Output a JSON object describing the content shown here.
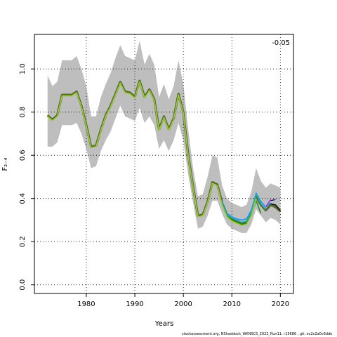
{
  "chart_data": {
    "type": "line",
    "title": "",
    "xlabel": "Years",
    "ylabel": "F₂₋₄",
    "xlim": [
      1969.3,
      2022.7
    ],
    "ylim": [
      -0.04,
      1.16
    ],
    "x_ticks": [
      1980,
      1990,
      2000,
      2010,
      2020
    ],
    "y_ticks": [
      0.0,
      0.2,
      0.4,
      0.6,
      0.8,
      1.0
    ],
    "grid": "dotted",
    "annotation": "-0.05",
    "confidence_band": {
      "x": [
        1972,
        1973,
        1974,
        1975,
        1976,
        1977,
        1978,
        1979,
        1980,
        1981,
        1982,
        1983,
        1984,
        1985,
        1986,
        1987,
        1988,
        1989,
        1990,
        1991,
        1992,
        1993,
        1994,
        1995,
        1996,
        1997,
        1998,
        1999,
        2000,
        2001,
        2002,
        2003,
        2004,
        2005,
        2006,
        2007,
        2008,
        2009,
        2010,
        2011,
        2012,
        2013,
        2014,
        2015,
        2016,
        2017,
        2018,
        2019,
        2020
      ],
      "upper": [
        0.97,
        0.92,
        0.94,
        1.04,
        1.04,
        1.04,
        1.06,
        1.0,
        0.92,
        0.78,
        0.78,
        0.87,
        0.93,
        0.98,
        1.05,
        1.11,
        1.06,
        1.05,
        1.04,
        1.13,
        1.02,
        1.07,
        1.02,
        0.87,
        0.93,
        0.86,
        0.92,
        1.04,
        0.93,
        0.72,
        0.54,
        0.41,
        0.42,
        0.5,
        0.6,
        0.59,
        0.46,
        0.4,
        0.38,
        0.37,
        0.36,
        0.37,
        0.43,
        0.54,
        0.48,
        0.45,
        0.47,
        0.46,
        0.45
      ],
      "lower": [
        0.64,
        0.64,
        0.66,
        0.74,
        0.74,
        0.74,
        0.75,
        0.7,
        0.63,
        0.54,
        0.55,
        0.62,
        0.67,
        0.71,
        0.77,
        0.83,
        0.78,
        0.77,
        0.76,
        0.82,
        0.75,
        0.78,
        0.74,
        0.63,
        0.67,
        0.62,
        0.67,
        0.75,
        0.67,
        0.51,
        0.38,
        0.26,
        0.27,
        0.32,
        0.39,
        0.39,
        0.33,
        0.28,
        0.26,
        0.25,
        0.24,
        0.24,
        0.28,
        0.35,
        0.32,
        0.29,
        0.31,
        0.3,
        0.28
      ]
    },
    "series": [
      {
        "color": "#556b2f",
        "x": [
          1972,
          1973,
          1974,
          1975,
          1976,
          1977,
          1978,
          1979,
          1980,
          1981,
          1982,
          1983,
          1984,
          1985,
          1986,
          1987,
          1988,
          1989,
          1990,
          1991,
          1992,
          1993,
          1994,
          1995,
          1996,
          1997,
          1998,
          1999,
          2000,
          2001,
          2002,
          2003,
          2004,
          2005,
          2006,
          2007,
          2008,
          2009,
          2010,
          2011,
          2012,
          2013,
          2014,
          2015,
          2016,
          2017,
          2018,
          2019,
          2020
        ],
        "values": [
          0.785,
          0.765,
          0.785,
          0.88,
          0.88,
          0.88,
          0.895,
          0.83,
          0.74,
          0.64,
          0.645,
          0.72,
          0.785,
          0.83,
          0.885,
          0.94,
          0.895,
          0.89,
          0.87,
          0.945,
          0.87,
          0.905,
          0.86,
          0.72,
          0.78,
          0.72,
          0.77,
          0.885,
          0.8,
          0.6,
          0.455,
          0.32,
          0.325,
          0.385,
          0.475,
          0.465,
          0.38,
          0.325,
          0.305,
          0.295,
          0.285,
          0.29,
          0.33,
          0.41,
          0.37,
          0.345,
          0.37,
          0.36,
          0.34
        ]
      },
      {
        "color": "#000000",
        "x": [
          2018,
          2019,
          2020
        ],
        "values": [
          0.375,
          0.37,
          0.345
        ]
      },
      {
        "color": "#1e90ff",
        "x": [
          2008,
          2009,
          2010,
          2011,
          2012,
          2013,
          2014,
          2015,
          2016,
          2017,
          2018
        ],
        "values": [
          0.385,
          0.33,
          0.315,
          0.305,
          0.3,
          0.305,
          0.345,
          0.425,
          0.385,
          0.36,
          0.38
        ]
      },
      {
        "color": "#20b2aa",
        "x": [
          2008,
          2009,
          2010,
          2011,
          2012,
          2013,
          2014,
          2015,
          2016,
          2017
        ],
        "values": [
          0.38,
          0.325,
          0.31,
          0.3,
          0.29,
          0.295,
          0.335,
          0.42,
          0.375,
          0.35
        ]
      },
      {
        "color": "#228b22",
        "x": [
          2008,
          2009,
          2010,
          2011,
          2012,
          2013,
          2014,
          2015,
          2016
        ],
        "values": [
          0.375,
          0.32,
          0.3,
          0.29,
          0.28,
          0.285,
          0.325,
          0.39,
          0.33
        ]
      },
      {
        "color": "#191970",
        "x": [
          2018,
          2019
        ],
        "values": [
          0.39,
          0.395
        ]
      },
      {
        "color": "#9932cc",
        "x": [
          2017,
          2018
        ],
        "values": [
          0.36,
          0.395
        ]
      },
      {
        "color": "#9acd32",
        "x": [
          1972,
          1973,
          1974,
          1975,
          1976,
          1977,
          1978,
          1979,
          1980,
          1981,
          1982,
          1983,
          1984,
          1985,
          1986,
          1987,
          1988,
          1989,
          1990,
          1991,
          1992,
          1993,
          1994,
          1995,
          1996,
          1997,
          1998,
          1999,
          2000,
          2001,
          2002,
          2003,
          2004,
          2005,
          2006,
          2007,
          2008,
          2009,
          2010,
          2011,
          2012,
          2013,
          2014,
          2015
        ],
        "values": [
          0.78,
          0.76,
          0.78,
          0.875,
          0.875,
          0.875,
          0.89,
          0.825,
          0.735,
          0.635,
          0.64,
          0.715,
          0.78,
          0.825,
          0.88,
          0.935,
          0.89,
          0.885,
          0.865,
          0.94,
          0.865,
          0.9,
          0.855,
          0.715,
          0.775,
          0.715,
          0.765,
          0.88,
          0.795,
          0.595,
          0.45,
          0.315,
          0.32,
          0.38,
          0.47,
          0.46,
          0.37,
          0.315,
          0.295,
          0.285,
          0.275,
          0.28,
          0.32,
          0.4
        ]
      }
    ]
  },
  "footer": {
    "source_text": "stockassessment.org, NShaddock_WKNSCS_2022_Run11, r15686 , git: ec2c2a0c6dde"
  }
}
